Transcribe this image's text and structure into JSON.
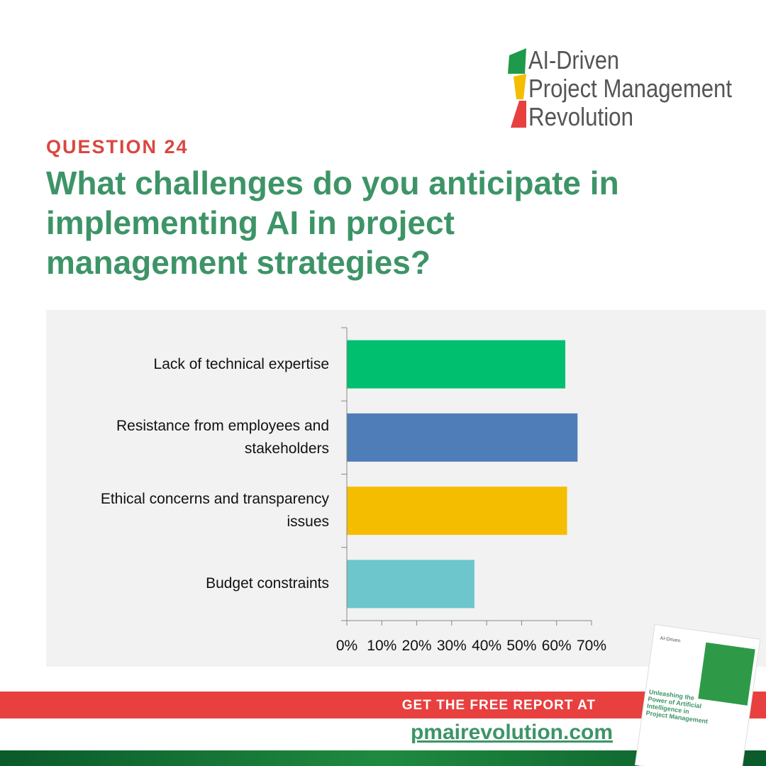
{
  "logo": {
    "line1": "AI-Driven",
    "line2": "Project Management",
    "line3": "Revolution"
  },
  "question_label": "QUESTION 24",
  "question": "What challenges do you anticipate in implementing AI in project management strategies?",
  "chart_data": {
    "type": "bar",
    "orientation": "horizontal",
    "categories": [
      "Lack of technical expertise",
      "Resistance from employees and stakeholders",
      "Ethical concerns and transparency issues",
      "Budget constraints"
    ],
    "values": [
      62.5,
      66,
      63,
      36.5
    ],
    "colors": [
      "#00bf6f",
      "#4f7db8",
      "#f5bd00",
      "#6cc6cc"
    ],
    "xlim": [
      0,
      70
    ],
    "xticks": [
      {
        "value": 0,
        "label": "0%"
      },
      {
        "value": 10,
        "label": "10%"
      },
      {
        "value": 20,
        "label": "20%"
      },
      {
        "value": 30,
        "label": "30%"
      },
      {
        "value": 40,
        "label": "40%"
      },
      {
        "value": 50,
        "label": "50%"
      },
      {
        "value": 60,
        "label": "60%"
      },
      {
        "value": 70,
        "label": "70%"
      }
    ]
  },
  "footer": {
    "cta": "GET THE FREE REPORT AT",
    "url": "pmairevolution.com"
  },
  "book": {
    "title": "Unleashing the Power of Artificial Intelligence in Project Management"
  }
}
